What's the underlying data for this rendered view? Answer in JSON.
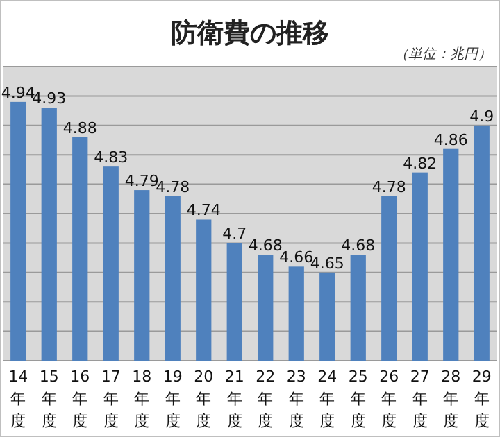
{
  "chart_data": {
    "type": "bar",
    "title": "防衛費の推移",
    "annotations": [
      "（単位：兆円）"
    ],
    "categories": [
      "14年度",
      "15年度",
      "16年度",
      "17年度",
      "18年度",
      "19年度",
      "20年度",
      "21年度",
      "22年度",
      "23年度",
      "24年度",
      "25年度",
      "26年度",
      "27年度",
      "28年度",
      "29年度"
    ],
    "values": [
      4.94,
      4.93,
      4.88,
      4.83,
      4.79,
      4.78,
      4.74,
      4.7,
      4.68,
      4.66,
      4.65,
      4.68,
      4.78,
      4.82,
      4.86,
      4.9
    ],
    "color": "#4f81bd",
    "ylim": [
      4.5,
      5.0
    ],
    "yticks": [
      {
        "value": 4.5,
        "label": null
      },
      {
        "value": 4.55,
        "label": null
      },
      {
        "value": 4.6,
        "label": null
      },
      {
        "value": 4.65,
        "label": null
      },
      {
        "value": 4.7,
        "label": null
      },
      {
        "value": 4.75,
        "label": null
      },
      {
        "value": 4.8,
        "label": null
      },
      {
        "value": 4.85,
        "label": null
      },
      {
        "value": 4.9,
        "label": null
      },
      {
        "value": 4.95,
        "label": null
      },
      {
        "value": 5.0,
        "label": null
      }
    ],
    "tick_labels": "x",
    "grid": "y",
    "data_labels": true
  }
}
